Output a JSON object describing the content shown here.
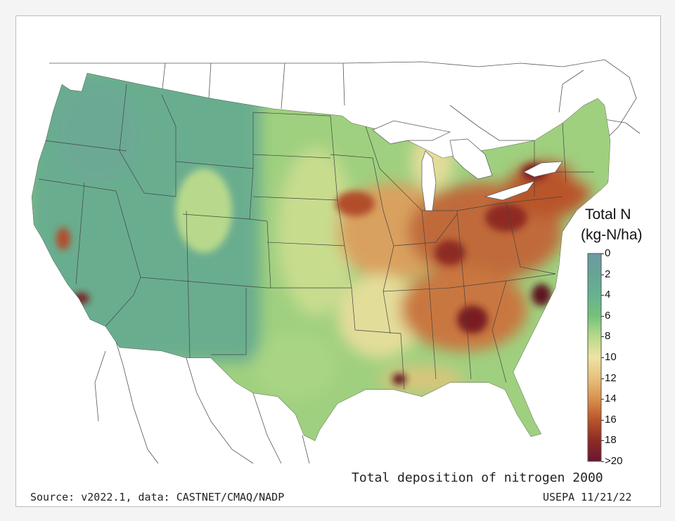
{
  "map_title": "Total deposition of nitrogen 2000",
  "source_text": "Source: v2022.1, data: CASTNET/CMAQ/NADP",
  "credit_text": "USEPA 11/21/22",
  "legend": {
    "title_line1": "Total N",
    "title_line2": "(kg-N/ha)",
    "ticks": [
      "0",
      "2",
      "4",
      "6",
      "8",
      "10",
      "12",
      "14",
      "16",
      "18",
      ">20"
    ],
    "colors": [
      "#6d9aa6",
      "#67a495",
      "#66b291",
      "#74c17b",
      "#b8d98b",
      "#efe3a4",
      "#e7c17c",
      "#d9914c",
      "#b9542b",
      "#8e2b24",
      "#6b1530"
    ]
  },
  "map_colors": {
    "low_west": "#69ad8f",
    "plains": "#9fd07f",
    "transition": "#e3dd9a",
    "moderate": "#d9a15f",
    "high": "#b24d2c",
    "very_high": "#7a1c22",
    "border": "#444444"
  }
}
